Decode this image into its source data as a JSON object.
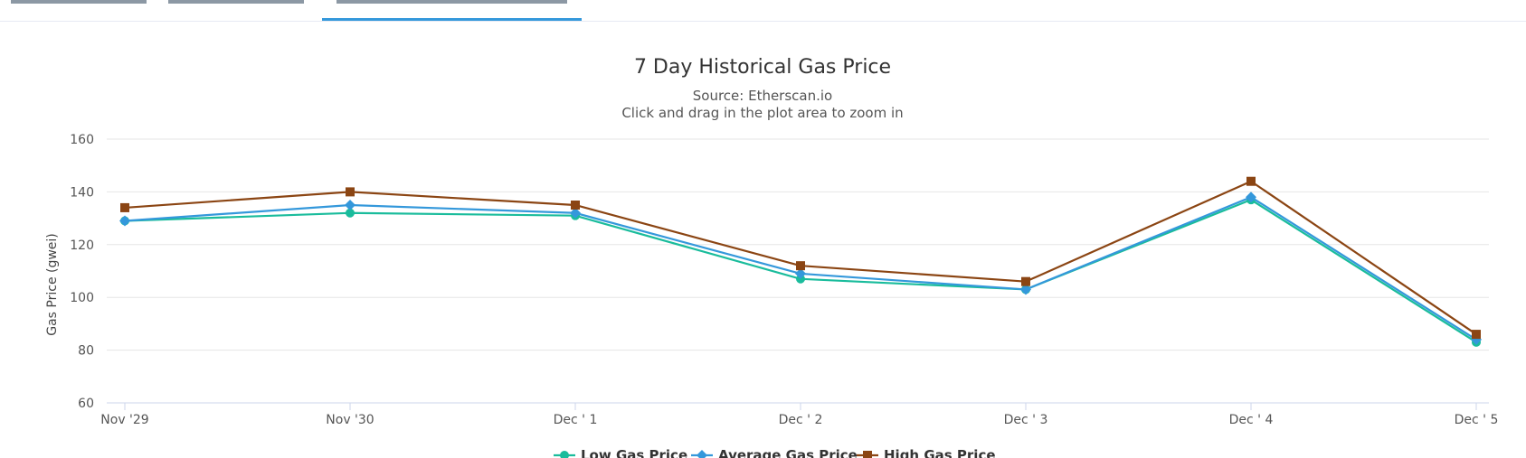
{
  "chart_data": {
    "type": "line",
    "title": "7 Day Historical Gas Price",
    "subtitle": "Source: Etherscan.io",
    "zoom_hint": "Click and drag in the plot area to zoom in",
    "ylabel": "Gas Price (gwei)",
    "xlabel": "",
    "ylim": [
      60,
      160
    ],
    "yticks": [
      60,
      80,
      100,
      120,
      140,
      160
    ],
    "grid": true,
    "legend": "bottom",
    "categories": [
      "Nov '29",
      "Nov '30",
      "Dec ' 1",
      "Dec ' 2",
      "Dec ' 3",
      "Dec ' 4",
      "Dec ' 5"
    ],
    "series": [
      {
        "name": "Low Gas Price",
        "color": "#1abc9c",
        "marker": "circle",
        "values": [
          129,
          132,
          131,
          107,
          103,
          137,
          83
        ]
      },
      {
        "name": "Average Gas Price",
        "color": "#3498db",
        "marker": "diamond",
        "values": [
          129,
          135,
          132,
          109,
          103,
          138,
          84
        ]
      },
      {
        "name": "High Gas Price",
        "color": "#8b4513",
        "marker": "square",
        "values": [
          134,
          140,
          135,
          112,
          106,
          144,
          86
        ]
      }
    ]
  }
}
